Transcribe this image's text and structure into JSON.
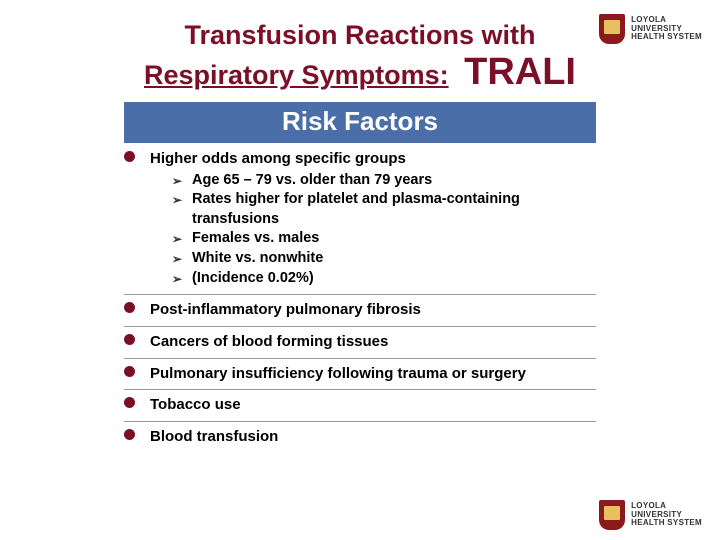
{
  "logo": {
    "line1": "LOYOLA",
    "line2": "UNIVERSITY",
    "line3": "HEALTH SYSTEM"
  },
  "title": {
    "line1": "Transfusion Reactions with",
    "line2_pre": "Respiratory Symptoms:",
    "line2_big": "TRALI"
  },
  "section_header": "Risk Factors",
  "items": [
    {
      "text": "Higher odds among specific groups",
      "subs": [
        "Age 65 – 79 vs. older than 79 years",
        "Rates higher for platelet and plasma-containing transfusions",
        "Females vs. males",
        "White vs. nonwhite",
        "(Incidence 0.02%)"
      ]
    },
    {
      "text": "Post-inflammatory pulmonary fibrosis"
    },
    {
      "text": "Cancers of blood forming tissues"
    },
    {
      "text": "Pulmonary insufficiency following trauma or surgery"
    },
    {
      "text": "Tobacco use"
    },
    {
      "text": "Blood transfusion"
    }
  ],
  "colors": {
    "maroon": "#7a0f27",
    "header_bg": "#4a6ea8",
    "header_fg": "#ffffff"
  }
}
